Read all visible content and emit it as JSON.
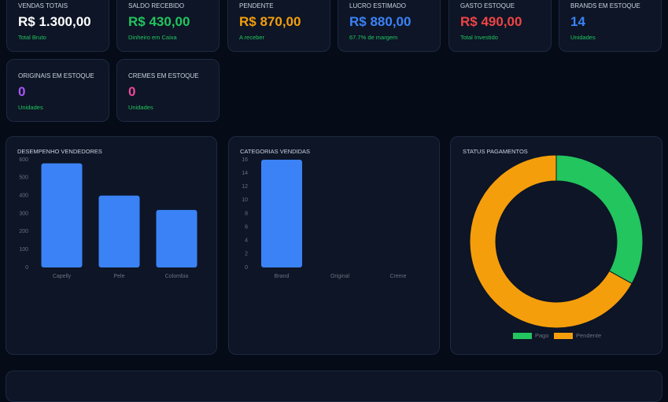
{
  "kpis": [
    {
      "title": "VENDAS TOTAIS",
      "value": "R$ 1.300,00",
      "subtitle": "Total Bruto",
      "color": "#ffffff"
    },
    {
      "title": "SALDO RECEBIDO",
      "value": "R$ 430,00",
      "subtitle": "Dinheiro em Caixa",
      "color": "#22c55e"
    },
    {
      "title": "PENDENTE",
      "value": "R$ 870,00",
      "subtitle": "A receber",
      "color": "#f59e0b"
    },
    {
      "title": "LUCRO ESTIMADO",
      "value": "R$ 880,00",
      "subtitle": "67.7% de margem",
      "color": "#3b82f6"
    },
    {
      "title": "GASTO ESTOQUE",
      "value": "R$ 490,00",
      "subtitle": "Total Investido",
      "color": "#ef4444"
    },
    {
      "title": "BRANDS EM ESTOQUE",
      "value": "14",
      "subtitle": "Unidades",
      "color": "#3b82f6"
    },
    {
      "title": "ORIGINAIS EM ESTOQUE",
      "value": "0",
      "subtitle": "Unidades",
      "color": "#a855f7"
    },
    {
      "title": "CREMES EM ESTOQUE",
      "value": "0",
      "subtitle": "Unidades",
      "color": "#ec4899"
    }
  ],
  "chart_data": [
    {
      "type": "bar",
      "title": "DESEMPENHO VENDEDORES",
      "categories": [
        "Capelly",
        "Pele",
        "Colombia"
      ],
      "values": [
        580,
        400,
        320
      ],
      "color": "#3b82f6",
      "ylim": [
        0,
        600
      ],
      "yticks": [
        0,
        100,
        200,
        300,
        400,
        500,
        600
      ]
    },
    {
      "type": "bar",
      "title": "CATEGORIAS VENDIDAS",
      "categories": [
        "Brand",
        "Original",
        "Creme"
      ],
      "values": [
        16,
        0,
        0
      ],
      "color": "#3b82f6",
      "ylim": [
        0,
        16
      ],
      "yticks": [
        0,
        2,
        4,
        6,
        8,
        10,
        12,
        14,
        16
      ]
    },
    {
      "type": "pie",
      "title": "STATUS PAGAMENTOS",
      "categories": [
        "Pago",
        "Pendente"
      ],
      "values": [
        430,
        870
      ],
      "colors": [
        "#22c55e",
        "#f59e0b"
      ]
    }
  ]
}
